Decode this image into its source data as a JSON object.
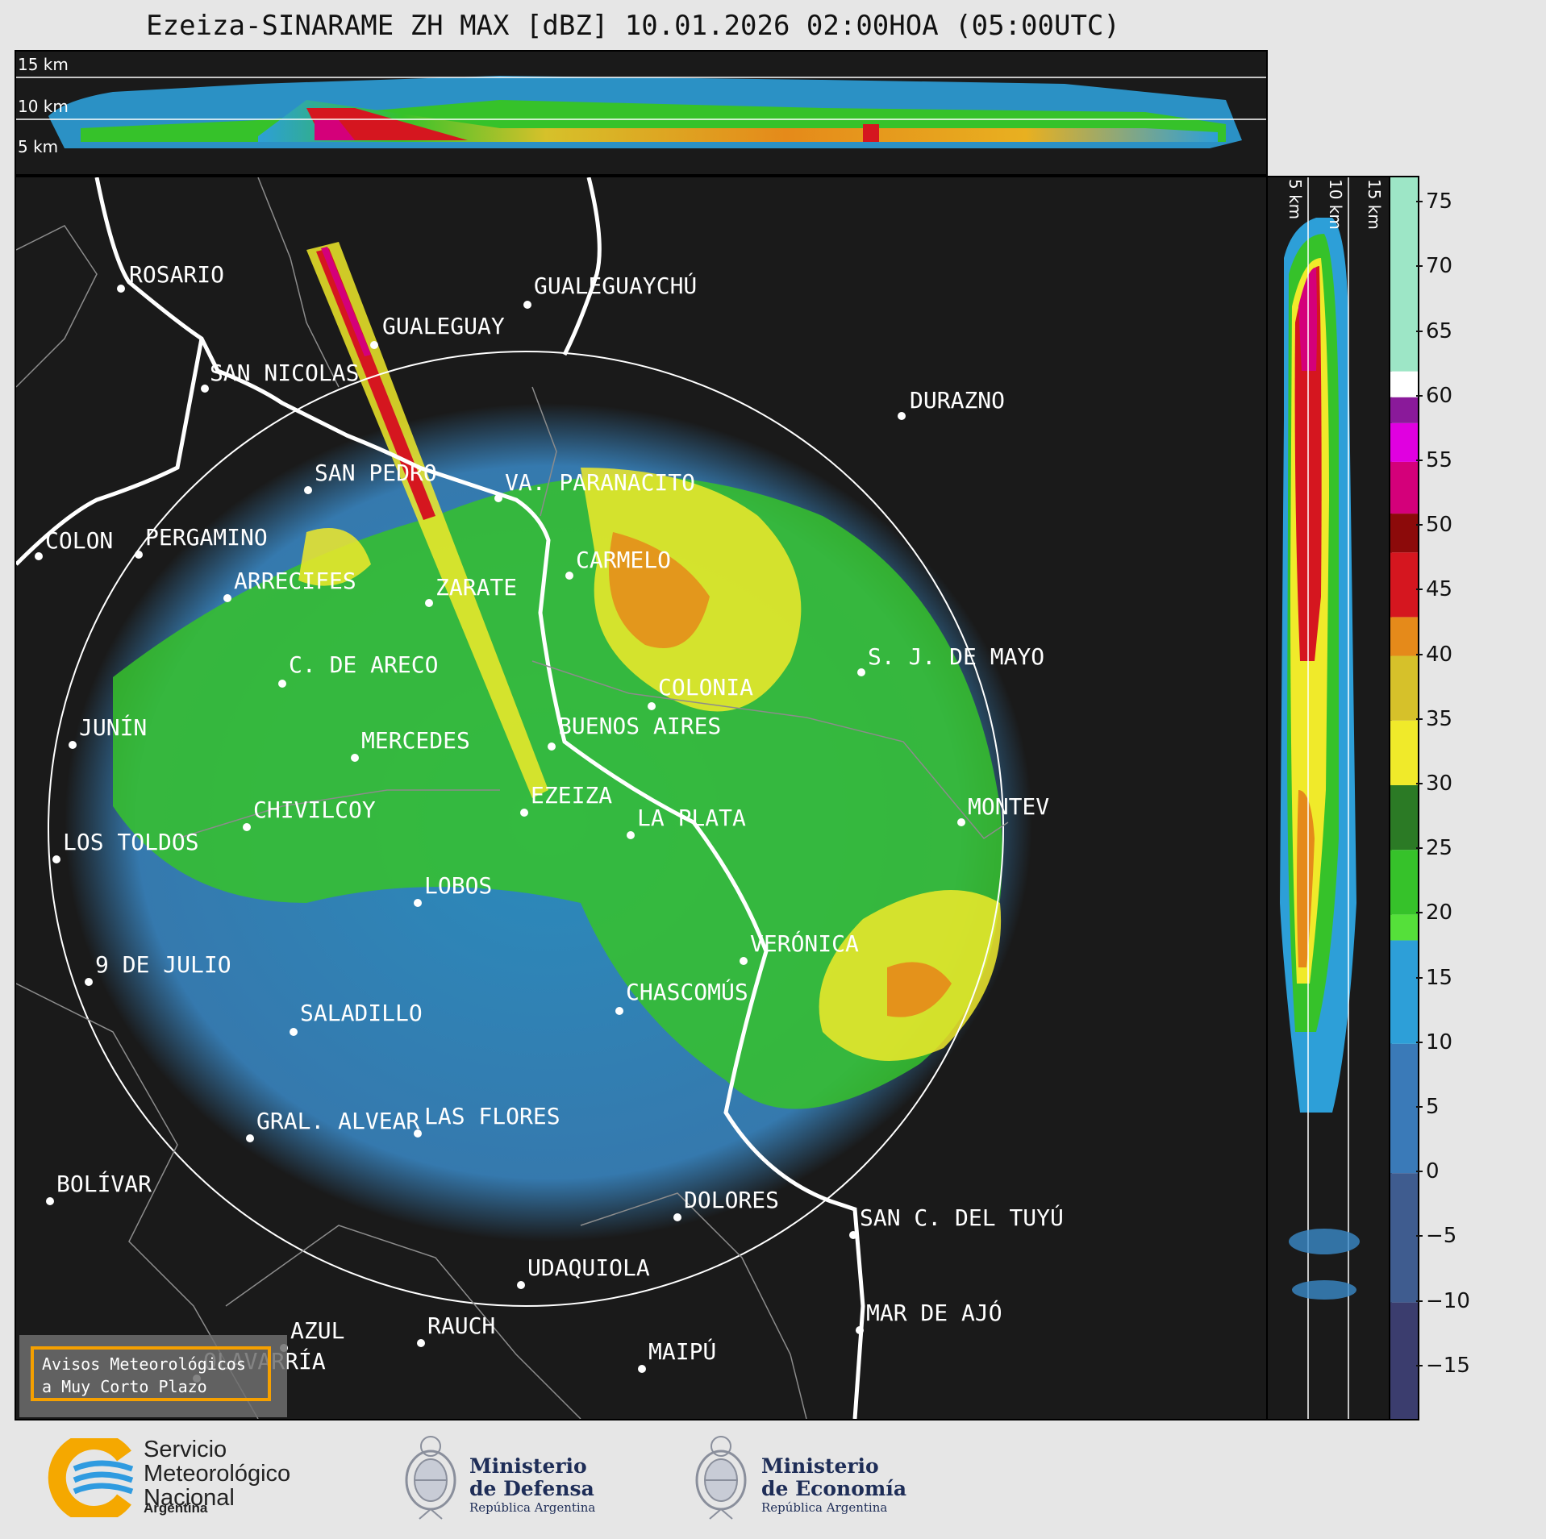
{
  "title": "Ezeiza-SINARAME ZH MAX [dBZ] 10.01.2026 02:00HOA (05:00UTC)",
  "top_panel": {
    "km_labels": [
      "15 km",
      "10 km",
      "5 km"
    ]
  },
  "side_panel": {
    "km_labels": [
      "5 km",
      "10 km",
      "15 km"
    ]
  },
  "colorbar": {
    "unit": "dBZ",
    "ticks": [
      "75",
      "70",
      "65",
      "60",
      "55",
      "50",
      "45",
      "40",
      "35",
      "30",
      "25",
      "20",
      "15",
      "10",
      "5",
      "0",
      "−5",
      "−10",
      "−15"
    ],
    "range": [
      -19,
      77
    ],
    "colors": [
      {
        "from": -19,
        "to": -10,
        "hex": "#3b3d6e"
      },
      {
        "from": -10,
        "to": 0,
        "hex": "#3f5c8f"
      },
      {
        "from": 0,
        "to": 10,
        "hex": "#3a7ab8"
      },
      {
        "from": 10,
        "to": 18,
        "hex": "#2d9fd8"
      },
      {
        "from": 18,
        "to": 20,
        "hex": "#55e03a"
      },
      {
        "from": 20,
        "to": 25,
        "hex": "#36c22a"
      },
      {
        "from": 25,
        "to": 30,
        "hex": "#2b7a25"
      },
      {
        "from": 30,
        "to": 35,
        "hex": "#f0ea2a"
      },
      {
        "from": 35,
        "to": 40,
        "hex": "#d6c12a"
      },
      {
        "from": 40,
        "to": 43,
        "hex": "#e58a1a"
      },
      {
        "from": 43,
        "to": 48,
        "hex": "#d5161f"
      },
      {
        "from": 48,
        "to": 51,
        "hex": "#8c0a0a"
      },
      {
        "from": 51,
        "to": 55,
        "hex": "#d4007a"
      },
      {
        "from": 55,
        "to": 58,
        "hex": "#e000e0"
      },
      {
        "from": 58,
        "to": 60,
        "hex": "#8a1a9a"
      },
      {
        "from": 60,
        "to": 62,
        "hex": "#ffffff"
      },
      {
        "from": 62,
        "to": 77,
        "hex": "#9de6c6"
      }
    ]
  },
  "cities": [
    {
      "name": "ROSARIO"
    },
    {
      "name": "GUALEGUAY"
    },
    {
      "name": "GUALEGUAYCHÚ"
    },
    {
      "name": "SAN NICOLAS"
    },
    {
      "name": "DURAZNO"
    },
    {
      "name": "SAN PEDRO"
    },
    {
      "name": "VA. PARANACITO"
    },
    {
      "name": "COLON"
    },
    {
      "name": "PERGAMINO"
    },
    {
      "name": "CARMELO"
    },
    {
      "name": "ARRECIFES"
    },
    {
      "name": "ZARATE"
    },
    {
      "name": "S. J. DE MAYO"
    },
    {
      "name": "C. DE ARECO"
    },
    {
      "name": "COLONIA"
    },
    {
      "name": "JUNÍN"
    },
    {
      "name": "BUENOS AIRES"
    },
    {
      "name": "MERCEDES"
    },
    {
      "name": "MONTEV"
    },
    {
      "name": "EZEIZA"
    },
    {
      "name": "CHIVILCOY"
    },
    {
      "name": "LA PLATA"
    },
    {
      "name": "LOS TOLDOS"
    },
    {
      "name": "LOBOS"
    },
    {
      "name": "VERÓNICA"
    },
    {
      "name": "9 DE JULIO"
    },
    {
      "name": "CHASCOMÚS"
    },
    {
      "name": "SALADILLO"
    },
    {
      "name": "LAS FLORES"
    },
    {
      "name": "GRAL. ALVEAR"
    },
    {
      "name": "BOLÍVAR"
    },
    {
      "name": "DOLORES"
    },
    {
      "name": "SAN C. DEL TUYÚ"
    },
    {
      "name": "UDAQUIOLA"
    },
    {
      "name": "MAR DE AJÓ"
    },
    {
      "name": "AZUL"
    },
    {
      "name": "RAUCH"
    },
    {
      "name": "MAIPÚ"
    },
    {
      "name": "OLAVARRÍA"
    }
  ],
  "badge": {
    "line1": "Avisos Meteorológicos",
    "line2": "a Muy Corto Plazo"
  },
  "logos": {
    "smn": {
      "line1": "Servicio",
      "line2": "Meteorológico",
      "line3": "Nacional",
      "country": "Argentina"
    },
    "defensa": {
      "line1": "Ministerio",
      "line2": "de Defensa",
      "sub": "República Argentina"
    },
    "economia": {
      "line1": "Ministerio",
      "line2": "de Economía",
      "sub": "República Argentina"
    }
  },
  "colors": {
    "background": "#1a1a1a",
    "page": "#e6e6e6",
    "accent_badge": "#f5a000"
  }
}
